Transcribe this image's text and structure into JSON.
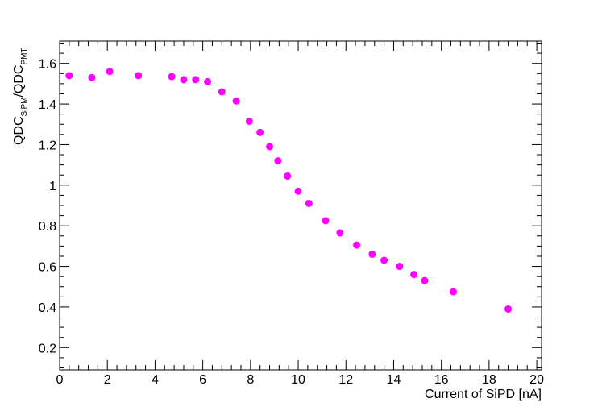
{
  "chart_data": {
    "type": "scatter",
    "title": "",
    "xlabel": "Current of SiPD [nA]",
    "ylabel": {
      "base1": "QDC",
      "sub1": "SiPM",
      "sep": "/",
      "base2": "QDC",
      "sub2": "PMT"
    },
    "xlim": [
      0,
      20.2
    ],
    "ylim": [
      0.09,
      1.71
    ],
    "x_ticks": [
      0,
      2,
      4,
      6,
      8,
      10,
      12,
      14,
      16,
      18,
      20
    ],
    "y_ticks": [
      0.2,
      0.4,
      0.6,
      0.8,
      1,
      1.2,
      1.4,
      1.6
    ],
    "x_tick_labels": [
      "0",
      "2",
      "4",
      "6",
      "8",
      "10",
      "12",
      "14",
      "16",
      "18",
      "20"
    ],
    "y_tick_labels": [
      "0.2",
      "0.4",
      "0.6",
      "0.8",
      "1",
      "1.2",
      "1.4",
      "1.6"
    ],
    "grid": false,
    "marker_color": "#ff00ff",
    "series": [
      {
        "x": [
          0.4,
          1.35,
          2.1,
          3.3,
          4.7,
          5.2,
          5.7,
          6.2,
          6.8,
          7.4,
          7.95,
          8.4,
          8.8,
          9.15,
          9.55,
          10.0,
          10.45,
          11.15,
          11.75,
          12.45,
          13.1,
          13.6,
          14.25,
          14.85,
          15.3,
          16.5,
          18.8
        ],
        "y": [
          1.54,
          1.53,
          1.56,
          1.54,
          1.535,
          1.52,
          1.52,
          1.51,
          1.46,
          1.415,
          1.315,
          1.26,
          1.19,
          1.12,
          1.045,
          0.97,
          0.91,
          0.825,
          0.765,
          0.705,
          0.66,
          0.63,
          0.6,
          0.56,
          0.53,
          0.475,
          0.39
        ]
      }
    ]
  }
}
